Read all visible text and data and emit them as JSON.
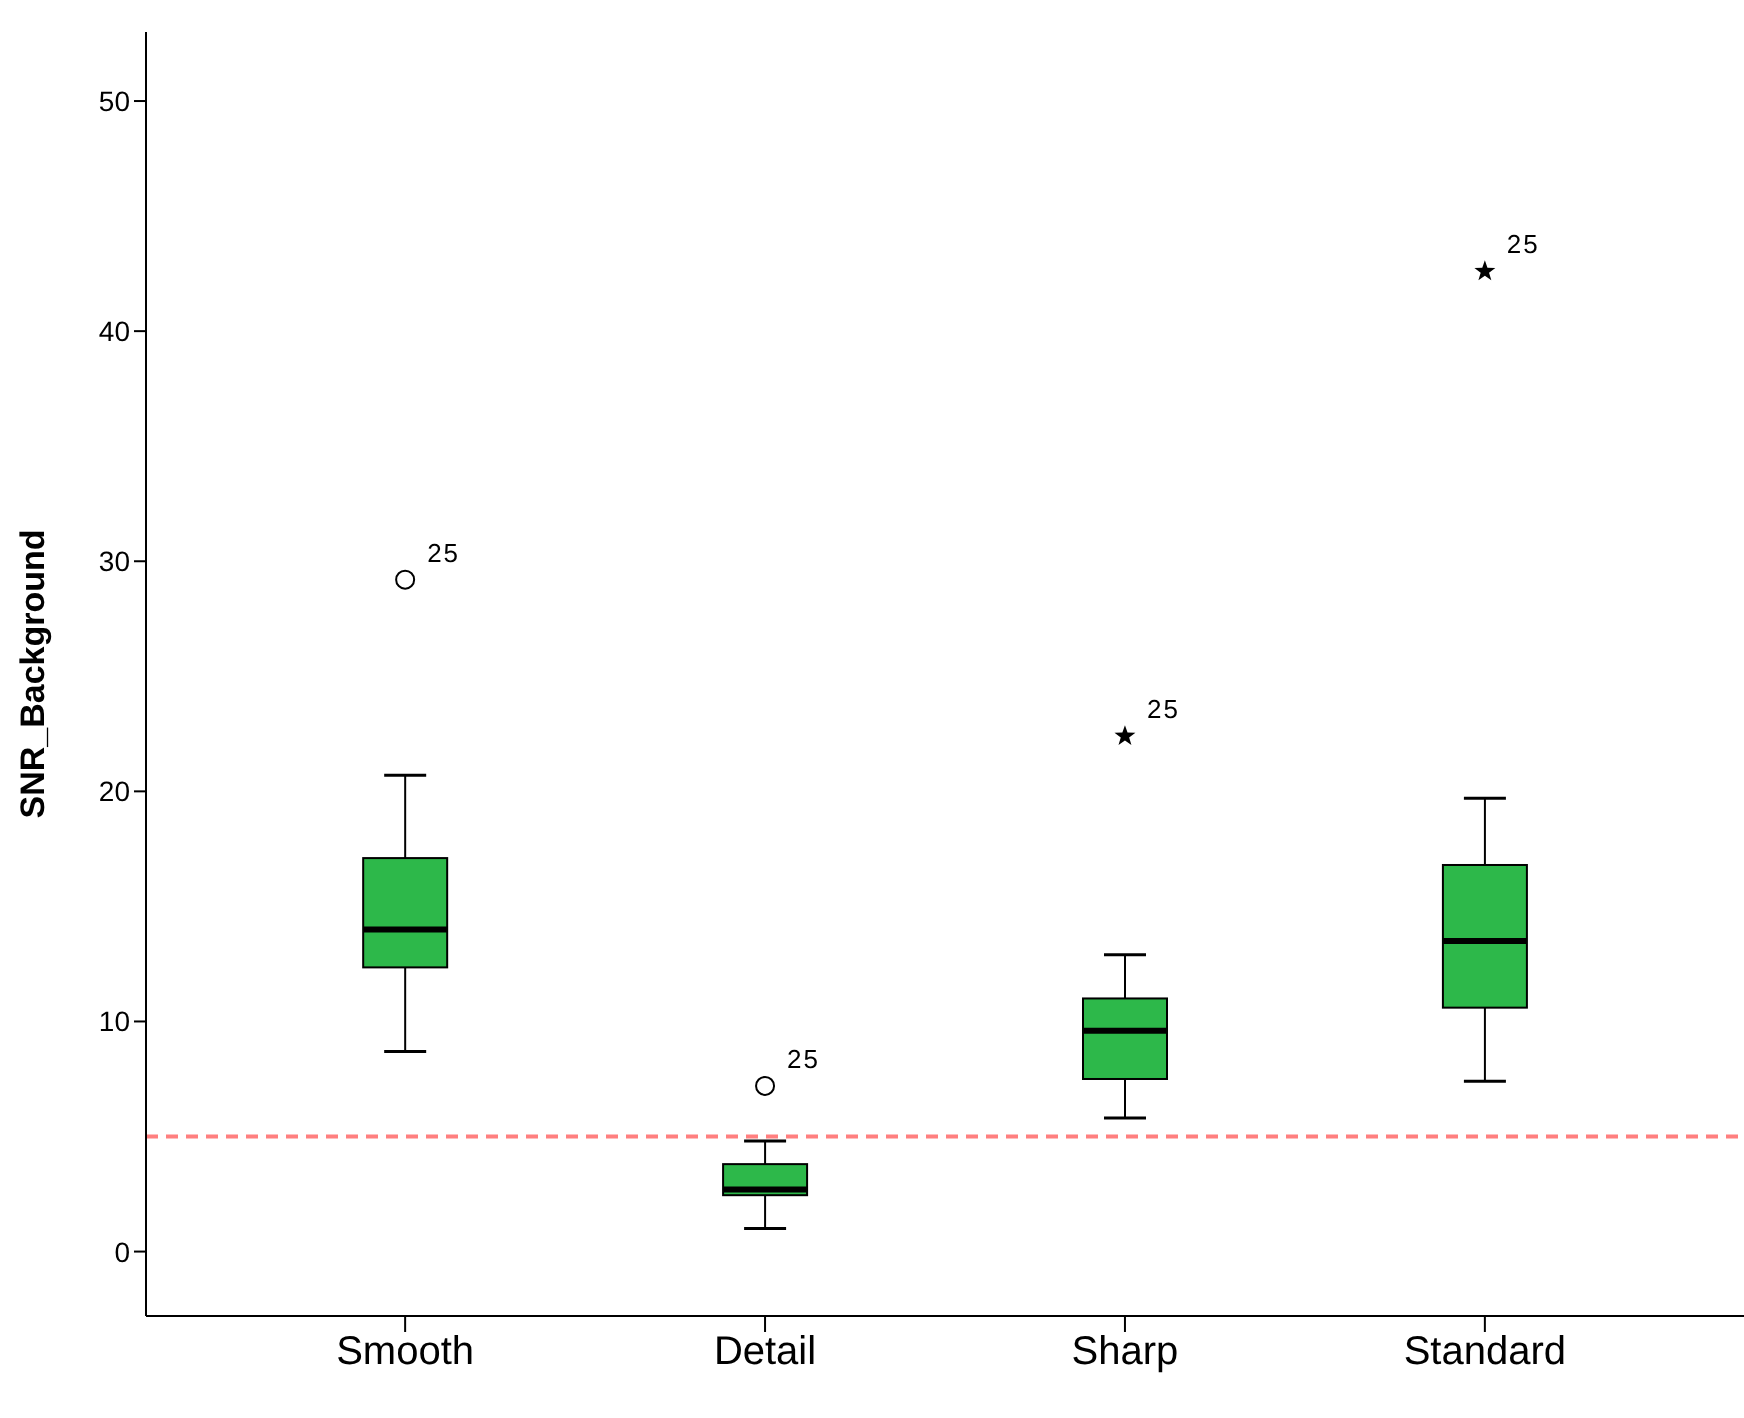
{
  "chart_data": {
    "type": "box",
    "ylabel": "SNR_Background",
    "categories": [
      "Smooth",
      "Detail",
      "Sharp",
      "Standard"
    ],
    "color": "#2db84a",
    "boxes": [
      {
        "low": 8.7,
        "q1": 12.35,
        "median": 14.0,
        "q3": 17.1,
        "high": 20.7
      },
      {
        "low": 1.0,
        "q1": 2.45,
        "median": 2.7,
        "q3": 3.8,
        "high": 4.8
      },
      {
        "low": 5.8,
        "q1": 7.5,
        "median": 9.6,
        "q3": 11.0,
        "high": 12.9
      },
      {
        "low": 7.4,
        "q1": 10.6,
        "median": 13.5,
        "q3": 16.8,
        "high": 19.7
      }
    ],
    "series": [
      {
        "type": "scatter",
        "x": [
          "Smooth",
          "Detail"
        ],
        "values": [
          29.2,
          7.2
        ],
        "marker": "circle",
        "color": "#000000"
      },
      {
        "type": "scatter",
        "x": [
          "Sharp",
          "Standard"
        ],
        "values": [
          22.4,
          42.6
        ],
        "marker": "star",
        "color": "#000000"
      }
    ],
    "annotations": [
      {
        "text": "25",
        "x": "Smooth",
        "y": 29.2
      },
      {
        "text": "25",
        "x": "Detail",
        "y": 7.2
      },
      {
        "text": "25",
        "x": "Sharp",
        "y": 22.4
      },
      {
        "text": "25",
        "x": "Standard",
        "y": 42.6
      }
    ],
    "ref_lines": [
      {
        "axis": "y",
        "value": 5,
        "color": "#ff7f7f",
        "line_style": "dashed"
      }
    ],
    "ylim": [
      -2.8,
      53
    ],
    "yticks": [
      0,
      10,
      20,
      30,
      40,
      50
    ]
  }
}
